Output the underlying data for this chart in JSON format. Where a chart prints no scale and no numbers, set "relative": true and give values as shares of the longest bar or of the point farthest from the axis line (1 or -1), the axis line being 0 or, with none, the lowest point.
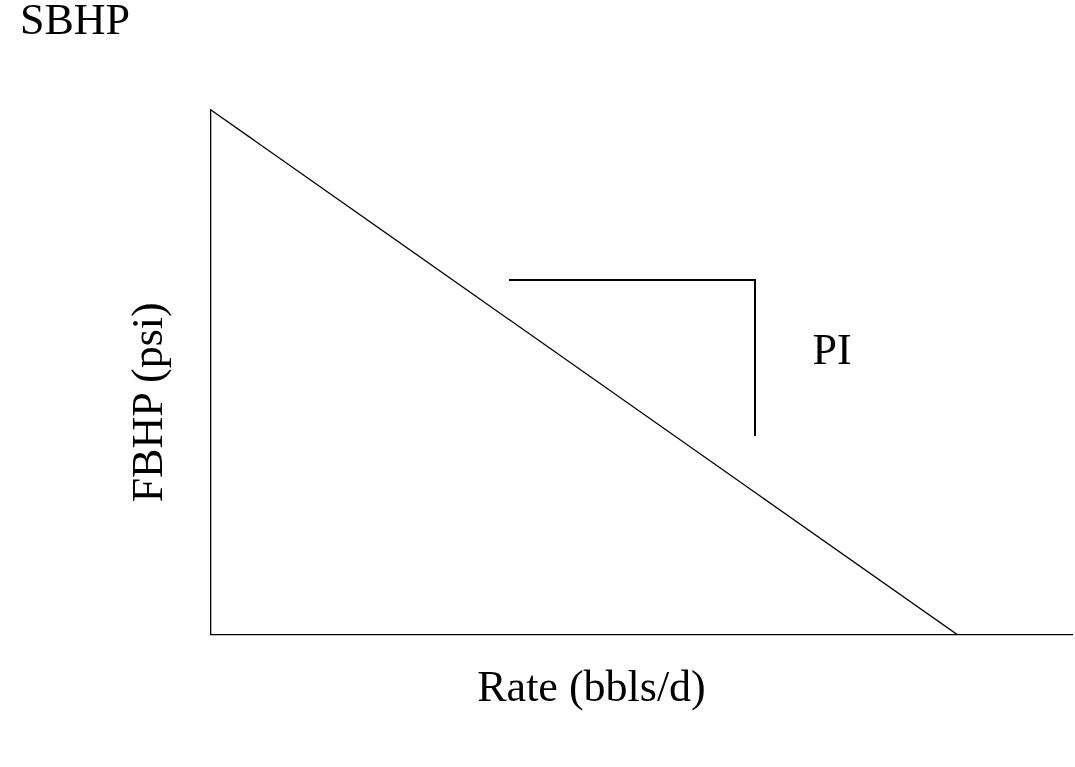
{
  "chart_data": {
    "type": "line",
    "relative": true,
    "xlabel": "Rate (bbls/d)",
    "ylabel": "FBHP (psi)",
    "categories": [
      null,
      null,
      null,
      null,
      null,
      null,
      null,
      null,
      null,
      null,
      null,
      null,
      null,
      null,
      null,
      null
    ],
    "series": [
      {
        "color": "#000000",
        "values": [
          1,
          null,
          null,
          null,
          null,
          null,
          null,
          null,
          null,
          null,
          null,
          null,
          null,
          0,
          null,
          null
        ]
      }
    ],
    "annotations": [
      "SBHP",
      "PI"
    ],
    "marker": "none",
    "legend": false,
    "grid": false
  }
}
